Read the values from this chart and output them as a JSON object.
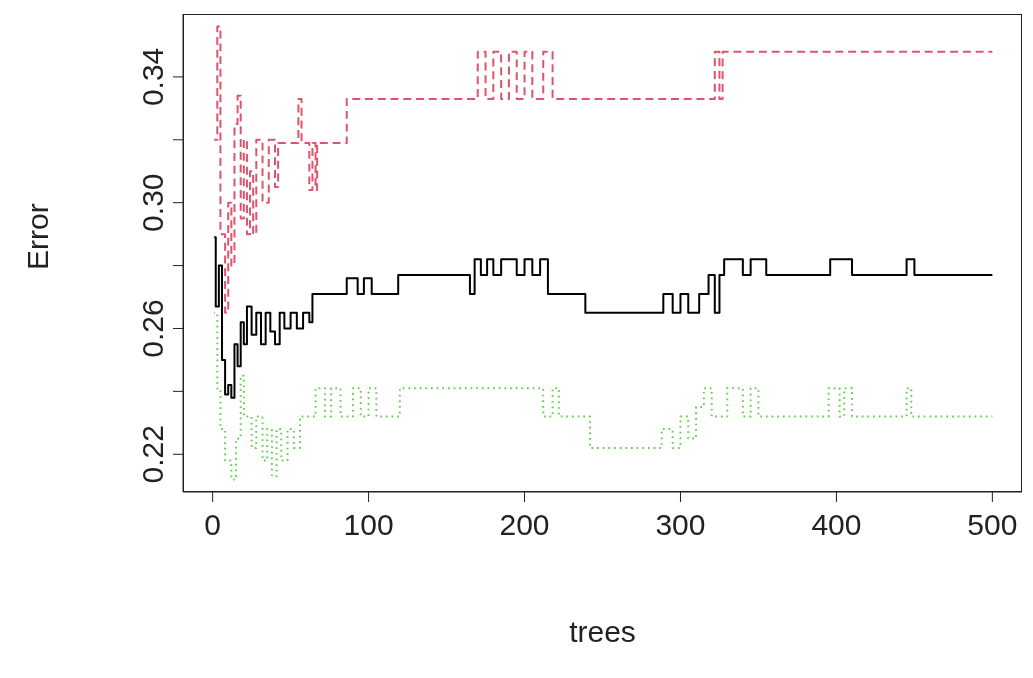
{
  "chart_data": {
    "type": "step",
    "xlabel": "trees",
    "ylabel": "Error",
    "xlim": [
      -19,
      519
    ],
    "ylim": [
      0.208,
      0.36
    ],
    "xticks": [
      0,
      100,
      200,
      300,
      400,
      500
    ],
    "yticks": [
      0.22,
      {
        "value": 0.24,
        "label": null
      },
      0.26,
      {
        "value": 0.28,
        "label": null
      },
      {
        "value": 0.3,
        "label": "0.30"
      },
      {
        "value": 0.32,
        "label": null
      },
      0.34
    ],
    "grid": false,
    "legend": false,
    "marker": "none",
    "series": [
      {
        "color": "#000000",
        "line_style": "solid",
        "x": [
          1,
          2,
          4,
          6,
          8,
          10,
          12,
          14,
          16,
          18,
          20,
          22,
          25,
          28,
          31,
          34,
          37,
          40,
          43,
          46,
          50,
          54,
          58,
          62,
          64,
          85,
          86,
          92,
          93,
          97,
          102,
          118,
          119,
          162,
          165,
          168,
          172,
          176,
          180,
          185,
          195,
          200,
          205,
          210,
          215,
          238,
          239,
          287,
          289,
          295,
          300,
          305,
          312,
          318,
          322,
          325,
          328,
          340,
          345,
          355,
          395,
          396,
          410,
          443,
          445,
          450,
          500
        ],
        "values": [
          0.289,
          0.267,
          0.28,
          0.25,
          0.239,
          0.242,
          0.238,
          0.255,
          0.248,
          0.262,
          0.255,
          0.267,
          0.258,
          0.265,
          0.255,
          0.265,
          0.259,
          0.255,
          0.265,
          0.26,
          0.265,
          0.26,
          0.265,
          0.262,
          0.271,
          0.271,
          0.276,
          0.276,
          0.271,
          0.276,
          0.271,
          0.271,
          0.277,
          0.277,
          0.271,
          0.282,
          0.277,
          0.282,
          0.277,
          0.282,
          0.277,
          0.282,
          0.277,
          0.282,
          0.271,
          0.271,
          0.265,
          0.265,
          0.271,
          0.265,
          0.271,
          0.265,
          0.271,
          0.277,
          0.265,
          0.277,
          0.282,
          0.277,
          0.282,
          0.277,
          0.277,
          0.282,
          0.277,
          0.277,
          0.282,
          0.277,
          0.277
        ]
      },
      {
        "color": "#df536b",
        "line_style": "dashed",
        "x": [
          1,
          3,
          5,
          8,
          10,
          12,
          14,
          16,
          18,
          20,
          22,
          24,
          26,
          28,
          32,
          36,
          40,
          42,
          53,
          55,
          57,
          61,
          62,
          64,
          66,
          67,
          85,
          86,
          168,
          170,
          175,
          180,
          185,
          190,
          195,
          200,
          205,
          212,
          218,
          320,
          322,
          325,
          327,
          500
        ],
        "values": [
          0.32,
          0.356,
          0.29,
          0.265,
          0.3,
          0.28,
          0.325,
          0.334,
          0.295,
          0.32,
          0.29,
          0.31,
          0.29,
          0.32,
          0.3,
          0.32,
          0.305,
          0.319,
          0.319,
          0.333,
          0.319,
          0.319,
          0.304,
          0.319,
          0.304,
          0.319,
          0.319,
          0.333,
          0.333,
          0.348,
          0.333,
          0.348,
          0.333,
          0.348,
          0.333,
          0.348,
          0.333,
          0.348,
          0.333,
          0.333,
          0.348,
          0.333,
          0.348,
          0.348
        ]
      },
      {
        "color": "#61d04f",
        "line_style": "dotted",
        "x": [
          1,
          3,
          5,
          8,
          12,
          15,
          18,
          20,
          25,
          28,
          32,
          35,
          38,
          41,
          44,
          48,
          52,
          56,
          64,
          66,
          72,
          76,
          82,
          90,
          95,
          100,
          105,
          118,
          120,
          210,
          212,
          218,
          222,
          238,
          242,
          285,
          288,
          295,
          300,
          305,
          310,
          315,
          320,
          330,
          340,
          345,
          350,
          356,
          393,
          395,
          402,
          405,
          410,
          443,
          445,
          448,
          500
        ],
        "values": [
          0.265,
          0.24,
          0.228,
          0.218,
          0.212,
          0.225,
          0.245,
          0.232,
          0.222,
          0.232,
          0.218,
          0.228,
          0.213,
          0.228,
          0.218,
          0.228,
          0.222,
          0.232,
          0.232,
          0.241,
          0.232,
          0.241,
          0.232,
          0.241,
          0.232,
          0.241,
          0.232,
          0.232,
          0.241,
          0.241,
          0.232,
          0.241,
          0.232,
          0.232,
          0.222,
          0.222,
          0.228,
          0.222,
          0.232,
          0.225,
          0.235,
          0.241,
          0.232,
          0.241,
          0.232,
          0.241,
          0.232,
          0.232,
          0.232,
          0.241,
          0.232,
          0.241,
          0.232,
          0.232,
          0.241,
          0.232,
          0.232
        ]
      }
    ]
  }
}
